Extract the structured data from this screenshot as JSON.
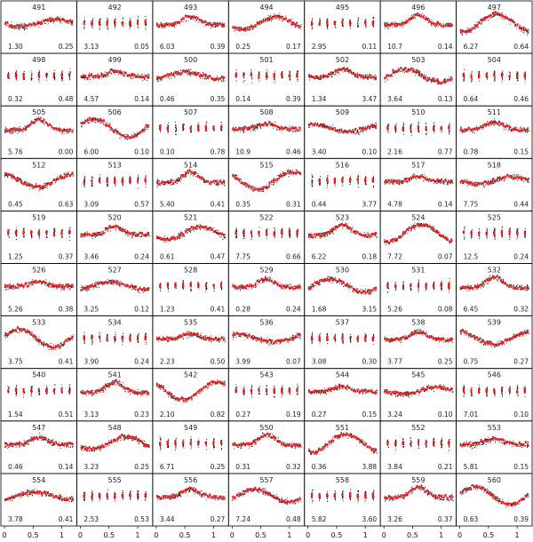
{
  "chart_data": {
    "type": "scatter",
    "title": "",
    "xlabel": "",
    "ylabel": "",
    "grid": "7x10 small multiples",
    "x_ticks": [
      "0",
      "0.5",
      "1"
    ],
    "xlim": [
      0,
      1.2
    ],
    "colors": {
      "points": "#000000",
      "binned": "#e41a1c",
      "frame": "#000000"
    },
    "panels": [
      {
        "id": "491",
        "left": "1.30",
        "right": "0.25"
      },
      {
        "id": "492",
        "left": "3.13",
        "right": "0.05"
      },
      {
        "id": "493",
        "left": "6.03",
        "right": "0.39"
      },
      {
        "id": "494",
        "left": "0.25",
        "right": "0.17"
      },
      {
        "id": "495",
        "left": "2.95",
        "right": "0.11"
      },
      {
        "id": "496",
        "left": "10.7",
        "right": "0.14"
      },
      {
        "id": "497",
        "left": "6.27",
        "right": "0.64"
      },
      {
        "id": "498",
        "left": "0.32",
        "right": "0.48"
      },
      {
        "id": "499",
        "left": "4.57",
        "right": "0.14"
      },
      {
        "id": "500",
        "left": "0.46",
        "right": "0.35"
      },
      {
        "id": "501",
        "left": "0.14",
        "right": "0.39"
      },
      {
        "id": "502",
        "left": "1.34",
        "right": "3.47"
      },
      {
        "id": "503",
        "left": "3.64",
        "right": "0.13"
      },
      {
        "id": "504",
        "left": "0.64",
        "right": "0.46"
      },
      {
        "id": "505",
        "left": "5.76",
        "right": "0.00"
      },
      {
        "id": "506",
        "left": "6.00",
        "right": "0.10"
      },
      {
        "id": "507",
        "left": "0.10",
        "right": "0.78"
      },
      {
        "id": "508",
        "left": "10.9",
        "right": "0.46"
      },
      {
        "id": "509",
        "left": "3.40",
        "right": "0.10"
      },
      {
        "id": "510",
        "left": "2.16",
        "right": "0.77"
      },
      {
        "id": "511",
        "left": "0.78",
        "right": "0.15"
      },
      {
        "id": "512",
        "left": "0.45",
        "right": "0.63"
      },
      {
        "id": "513",
        "left": "3.09",
        "right": "0.57"
      },
      {
        "id": "514",
        "left": "5.40",
        "right": "0.41"
      },
      {
        "id": "515",
        "left": "0.35",
        "right": "0.31"
      },
      {
        "id": "516",
        "left": "0.44",
        "right": "3.77"
      },
      {
        "id": "517",
        "left": "4.78",
        "right": "0.14"
      },
      {
        "id": "518",
        "left": "7.75",
        "right": "0.44"
      },
      {
        "id": "519",
        "left": "1.25",
        "right": "0.37"
      },
      {
        "id": "520",
        "left": "3.46",
        "right": "0.24"
      },
      {
        "id": "521",
        "left": "0.61",
        "right": "0.47"
      },
      {
        "id": "522",
        "left": "7.75",
        "right": "0.66"
      },
      {
        "id": "523",
        "left": "6.22",
        "right": "0.18"
      },
      {
        "id": "524",
        "left": "7.72",
        "right": "0.07"
      },
      {
        "id": "525",
        "left": "12.5",
        "right": "0.24"
      },
      {
        "id": "526",
        "left": "5.26",
        "right": "0.38"
      },
      {
        "id": "527",
        "left": "3.25",
        "right": "0.12"
      },
      {
        "id": "528",
        "left": "1.23",
        "right": "0.41"
      },
      {
        "id": "529",
        "left": "0.28",
        "right": "0.24"
      },
      {
        "id": "530",
        "left": "1.68",
        "right": "3.15"
      },
      {
        "id": "531",
        "left": "5.26",
        "right": "0.08"
      },
      {
        "id": "532",
        "left": "6.45",
        "right": "0.32"
      },
      {
        "id": "533",
        "left": "3.75",
        "right": "0.41"
      },
      {
        "id": "534",
        "left": "3.90",
        "right": "0.24"
      },
      {
        "id": "535",
        "left": "2.23",
        "right": "0.50"
      },
      {
        "id": "536",
        "left": "3.99",
        "right": "0.07"
      },
      {
        "id": "537",
        "left": "3.08",
        "right": "0.30"
      },
      {
        "id": "538",
        "left": "3.77",
        "right": "0.25"
      },
      {
        "id": "539",
        "left": "0.75",
        "right": "0.27"
      },
      {
        "id": "540",
        "left": "1.54",
        "right": "0.51"
      },
      {
        "id": "541",
        "left": "3.13",
        "right": "0.23"
      },
      {
        "id": "542",
        "left": "2.10",
        "right": "0.82"
      },
      {
        "id": "543",
        "left": "0.27",
        "right": "0.19"
      },
      {
        "id": "544",
        "left": "0.27",
        "right": "0.15"
      },
      {
        "id": "545",
        "left": "3.24",
        "right": "0.10"
      },
      {
        "id": "546",
        "left": "7.01",
        "right": "0.10"
      },
      {
        "id": "547",
        "left": "0.46",
        "right": "0.14"
      },
      {
        "id": "548",
        "left": "3.23",
        "right": "0.25"
      },
      {
        "id": "549",
        "left": "6.71",
        "right": "0.25"
      },
      {
        "id": "550",
        "left": "0.31",
        "right": "0.32"
      },
      {
        "id": "551",
        "left": "0.36",
        "right": "3.88"
      },
      {
        "id": "552",
        "left": "3.84",
        "right": "0.21"
      },
      {
        "id": "553",
        "left": "5.81",
        "right": "0.15"
      },
      {
        "id": "554",
        "left": "3.78",
        "right": "0.41"
      },
      {
        "id": "555",
        "left": "2.53",
        "right": "0.53"
      },
      {
        "id": "556",
        "left": "3.44",
        "right": "0.27"
      },
      {
        "id": "557",
        "left": "7.24",
        "right": "0.48"
      },
      {
        "id": "558",
        "left": "5.82",
        "right": "3.60"
      },
      {
        "id": "559",
        "left": "3.26",
        "right": "0.37"
      },
      {
        "id": "560",
        "left": "0.63",
        "right": "0.39"
      }
    ]
  }
}
